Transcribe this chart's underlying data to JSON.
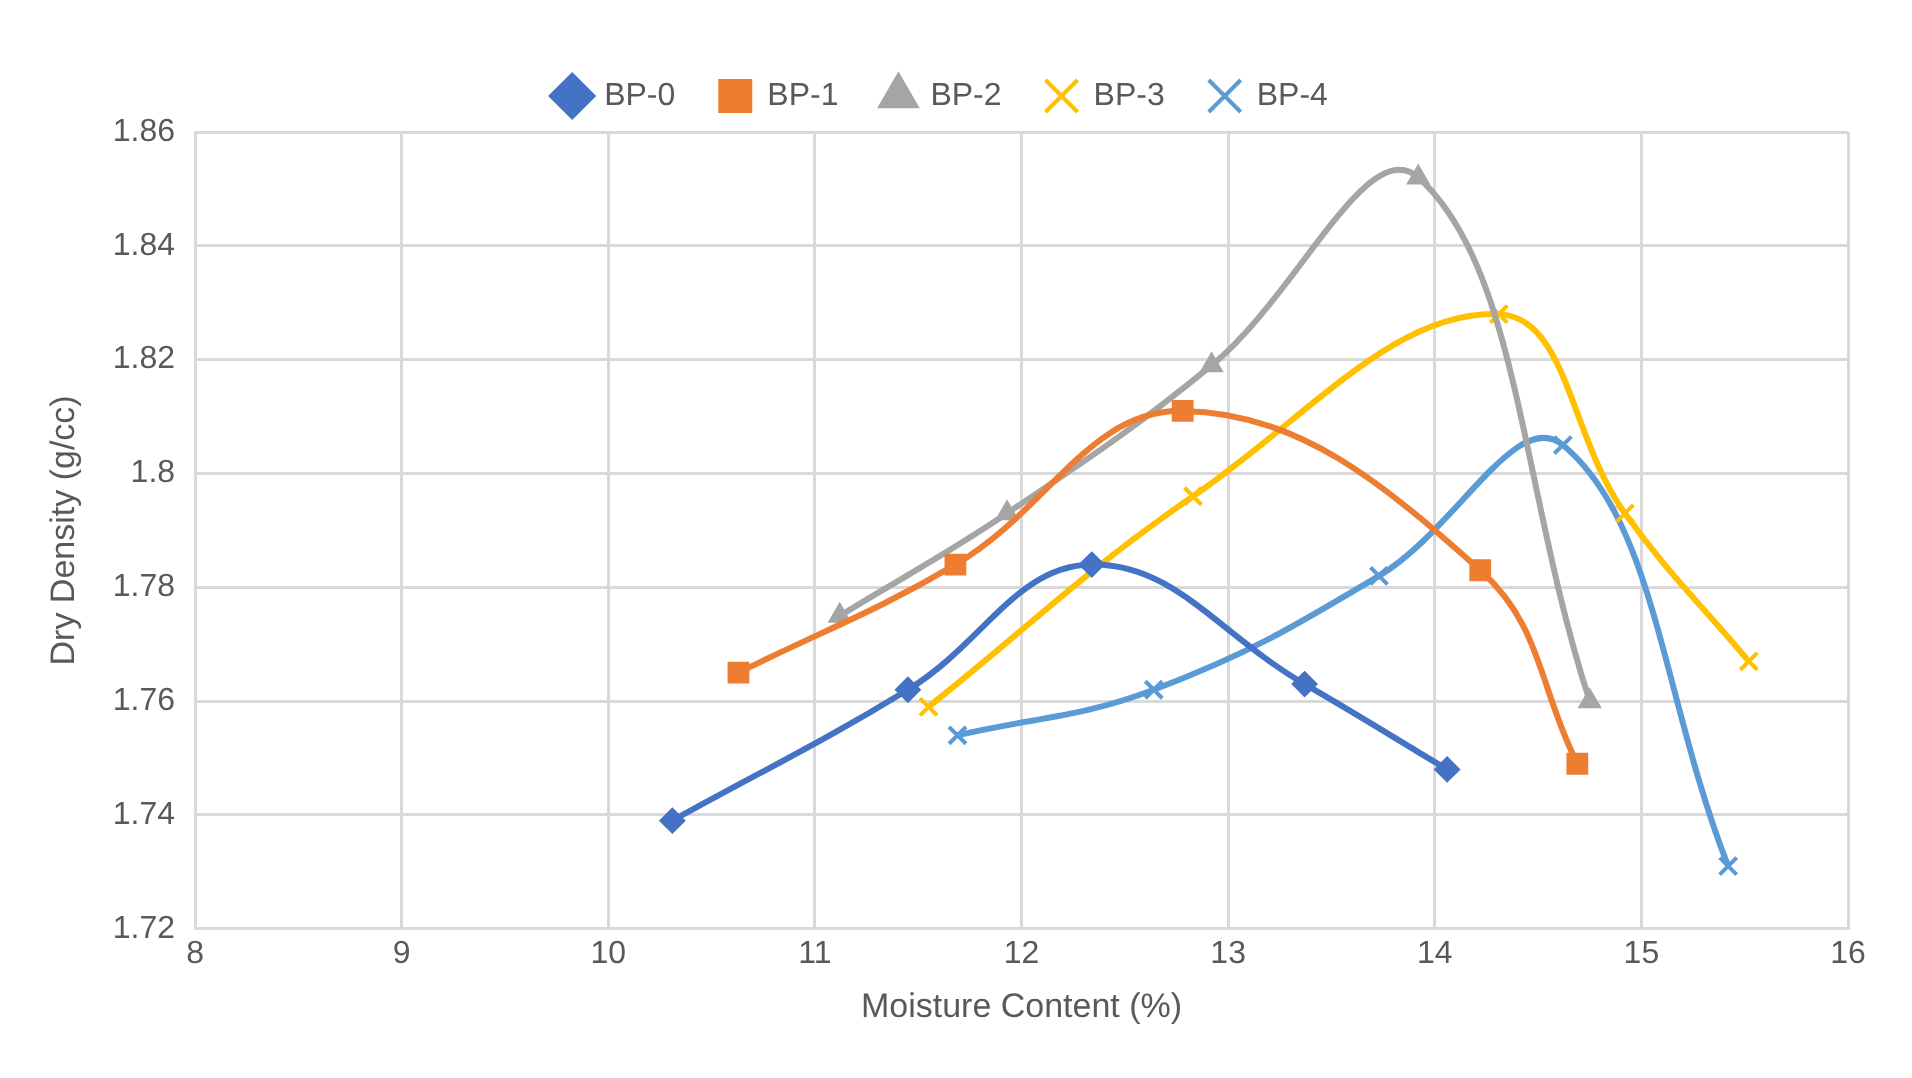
{
  "chart_data": {
    "type": "line",
    "xlabel": "Moisture Content (%)",
    "ylabel": "Dry Density (g/cc)",
    "xlim": [
      8,
      16
    ],
    "xticks": [
      8,
      9,
      10,
      11,
      12,
      13,
      14,
      15,
      16
    ],
    "ylim": [
      1.72,
      1.86
    ],
    "yticks": [
      1.72,
      1.74,
      1.76,
      1.78,
      1.8,
      1.82,
      1.84,
      1.86
    ],
    "grid": true,
    "legend": "top",
    "line_style": "solid",
    "series": [
      {
        "name": "BP-0",
        "color": "#4472c4",
        "marker": "diamond",
        "x": [
          10.31,
          11.45,
          12.34,
          13.37,
          14.06
        ],
        "values": [
          1.739,
          1.762,
          1.784,
          1.763,
          1.748
        ]
      },
      {
        "name": "BP-1",
        "color": "#ed7d31",
        "marker": "square",
        "x": [
          10.63,
          11.68,
          12.78,
          14.22,
          14.69
        ],
        "values": [
          1.765,
          1.784,
          1.811,
          1.783,
          1.749
        ]
      },
      {
        "name": "BP-2",
        "color": "#a5a5a5",
        "marker": "triangle",
        "x": [
          11.12,
          11.93,
          12.92,
          13.92,
          14.75
        ],
        "values": [
          1.775,
          1.793,
          1.819,
          1.852,
          1.76
        ]
      },
      {
        "name": "BP-3",
        "color": "#ffc000",
        "marker": "cross",
        "x": [
          11.55,
          12.83,
          14.31,
          14.92,
          15.52
        ],
        "values": [
          1.759,
          1.796,
          1.828,
          1.793,
          1.767
        ]
      },
      {
        "name": "BP-4",
        "color": "#5b9bd5",
        "marker": "cross",
        "x": [
          11.69,
          12.64,
          13.73,
          14.62,
          15.42
        ],
        "values": [
          1.754,
          1.762,
          1.782,
          1.805,
          1.731
        ]
      }
    ]
  }
}
